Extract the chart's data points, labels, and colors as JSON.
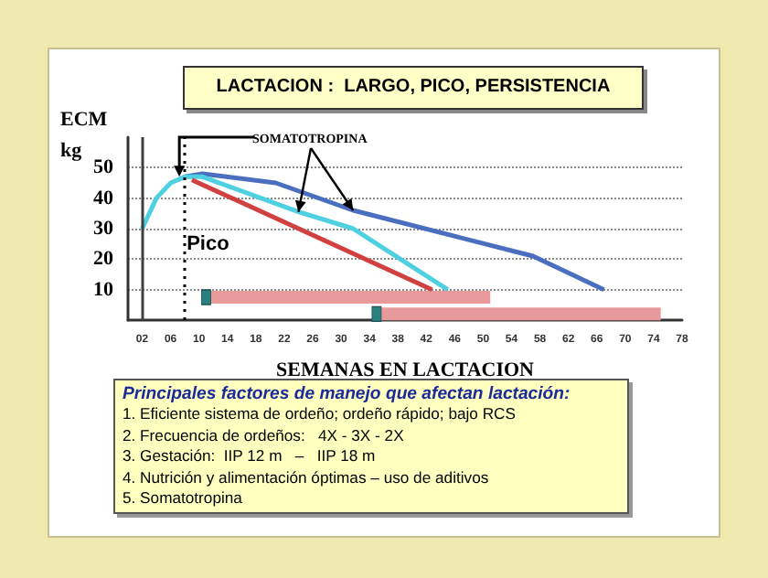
{
  "chart_data": {
    "type": "line",
    "title": "LACTACION :  LARGO, PICO, PERSISTENCIA",
    "ylabel": "ECM\nkg",
    "xlabel": "SEMANAS EN LACTACION",
    "xlim": [
      0,
      78
    ],
    "xticks": [
      {
        "value": 2,
        "label": "02"
      },
      {
        "value": 6,
        "label": "06"
      },
      10,
      14,
      18,
      22,
      26,
      30,
      34,
      38,
      42,
      46,
      50,
      54,
      58,
      62,
      66,
      70,
      74,
      78
    ],
    "ylim": [
      0,
      60
    ],
    "yticks": [
      10,
      20,
      30,
      40,
      50
    ],
    "grid": "y",
    "marker": "none",
    "series": [
      {
        "color": "#4a6fc0",
        "x": [
          8,
          10.5,
          20.8,
          31.7,
          57,
          67
        ],
        "values": [
          47,
          48,
          45,
          36,
          21,
          10
        ]
      },
      {
        "color": "#4fd0e0",
        "x": [
          2,
          4,
          6,
          8,
          10.5,
          24,
          31.7,
          45
        ],
        "values": [
          30,
          40,
          45,
          47,
          47,
          35.5,
          30,
          10
        ]
      },
      {
        "color": "#d04040",
        "x": [
          9,
          42.8
        ],
        "values": [
          46,
          10
        ]
      },
      {
        "color": "#e89a9a",
        "marker": "square",
        "x": [
          11,
          51
        ],
        "values": [
          7.5,
          7.5
        ]
      },
      {
        "color": "#e89a9a",
        "marker": "square",
        "x": [
          35,
          75
        ],
        "values": [
          2,
          2
        ]
      }
    ],
    "ref_lines": [
      {
        "axis": "x",
        "value": 8,
        "color": "#000000",
        "line_style": "dotted"
      },
      {
        "axis": "x",
        "value": 2,
        "color": "#404040",
        "line_style": "solid"
      }
    ],
    "annotations": [
      {
        "text": "Pico",
        "x": 8,
        "y": 47
      },
      {
        "text": "SOMATOTROPINA",
        "x": 24,
        "y": 35.5
      },
      "Principales factores de manejo que afectan lactación:",
      "1. Eficiente sistema de ordeño; ordeño rápido; bajo RCS",
      "2. Frecuencia de ordeños:   4X - 3X - 2X",
      "3. Gestación:  IIP 12 m   –   IIP 18 m",
      "4. Nutrición y alimentación óptimas – uso de aditivos",
      "5. Somatotropina"
    ]
  }
}
